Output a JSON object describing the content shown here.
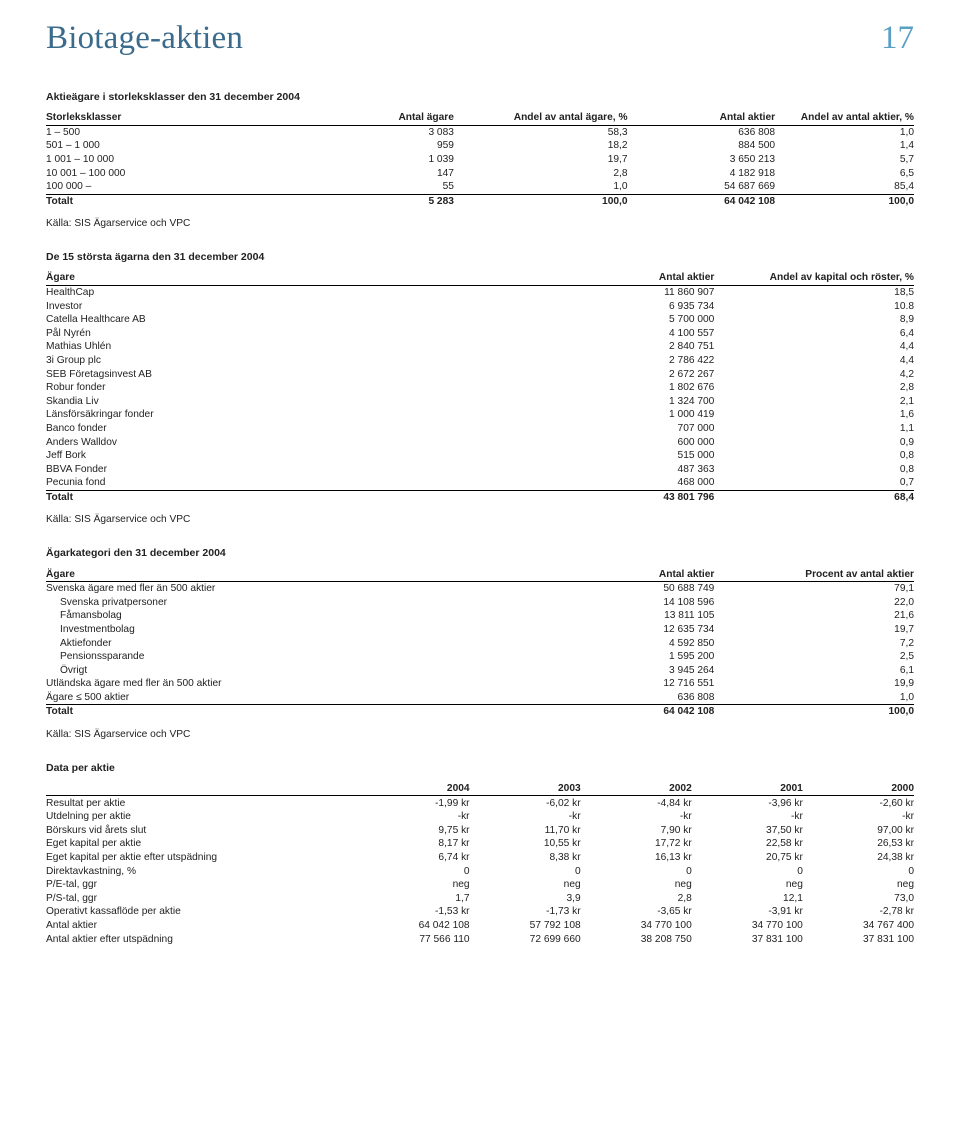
{
  "header": {
    "title": "Biotage-aktien",
    "page_num": "17"
  },
  "source_label": "Källa: SIS Ägarservice och VPC",
  "table1": {
    "title": "Aktieägare i storleksklasser den 31 december 2004",
    "headers": [
      "Storleksklasser",
      "Antal ägare",
      "Andel av antal ägare, %",
      "Antal aktier",
      "Andel av antal aktier, %"
    ],
    "rows": [
      [
        "1 – 500",
        "3 083",
        "58,3",
        "636 808",
        "1,0"
      ],
      [
        "501 – 1 000",
        "959",
        "18,2",
        "884 500",
        "1,4"
      ],
      [
        "1 001 – 10 000",
        "1 039",
        "19,7",
        "3 650 213",
        "5,7"
      ],
      [
        "10 001 – 100 000",
        "147",
        "2,8",
        "4 182 918",
        "6,5"
      ],
      [
        "100 000 –",
        "55",
        "1,0",
        "54 687 669",
        "85,4"
      ]
    ],
    "total": [
      "Totalt",
      "5 283",
      "100,0",
      "64 042 108",
      "100,0"
    ]
  },
  "table2": {
    "title": "De 15 största ägarna den 31 december 2004",
    "headers": [
      "Ägare",
      "Antal aktier",
      "Andel av kapital och röster, %"
    ],
    "rows": [
      [
        "HealthCap",
        "11 860 907",
        "18,5"
      ],
      [
        "Investor",
        "6 935 734",
        "10.8"
      ],
      [
        "Catella Healthcare AB",
        "5 700 000",
        "8,9"
      ],
      [
        "Pål Nyrén",
        "4 100 557",
        "6,4"
      ],
      [
        "Mathias Uhlén",
        "2 840 751",
        "4,4"
      ],
      [
        "3i Group plc",
        "2 786 422",
        "4,4"
      ],
      [
        "SEB Företagsinvest AB",
        "2 672 267",
        "4,2"
      ],
      [
        "Robur fonder",
        "1 802 676",
        "2,8"
      ],
      [
        "Skandia Liv",
        "1 324 700",
        "2,1"
      ],
      [
        "Länsförsäkringar fonder",
        "1 000 419",
        "1,6"
      ],
      [
        "Banco fonder",
        "707 000",
        "1,1"
      ],
      [
        "Anders Walldov",
        "600 000",
        "0,9"
      ],
      [
        "Jeff Bork",
        "515 000",
        "0,8"
      ],
      [
        "BBVA Fonder",
        "487 363",
        "0,8"
      ],
      [
        "Pecunia fond",
        "468 000",
        "0,7"
      ]
    ],
    "total": [
      "Totalt",
      "43 801 796",
      "68,4"
    ]
  },
  "table3": {
    "title": "Ägarkategori den 31 december 2004",
    "headers": [
      "Ägare",
      "Antal aktier",
      "Procent av antal aktier"
    ],
    "rows": [
      {
        "cells": [
          "Svenska ägare med fler än 500 aktier",
          "50 688 749",
          "79,1"
        ],
        "indent": 0
      },
      {
        "cells": [
          "Svenska privatpersoner",
          "14 108 596",
          "22,0"
        ],
        "indent": 1
      },
      {
        "cells": [
          "Fåmansbolag",
          "13 811 105",
          "21,6"
        ],
        "indent": 1
      },
      {
        "cells": [
          "Investmentbolag",
          "12 635 734",
          "19,7"
        ],
        "indent": 1
      },
      {
        "cells": [
          "Aktiefonder",
          "4 592 850",
          "7,2"
        ],
        "indent": 1
      },
      {
        "cells": [
          "Pensionssparande",
          "1 595 200",
          "2,5"
        ],
        "indent": 1
      },
      {
        "cells": [
          "Övrigt",
          "3 945 264",
          "6,1"
        ],
        "indent": 1
      },
      {
        "cells": [
          "Utländska ägare med fler än 500 aktier",
          "12 716 551",
          "19,9"
        ],
        "indent": 0
      },
      {
        "cells": [
          "Ägare ≤ 500 aktier",
          "636 808",
          "1,0"
        ],
        "indent": 0
      }
    ],
    "total": [
      "Totalt",
      "64 042 108",
      "100,0"
    ]
  },
  "table4": {
    "title": "Data per aktie",
    "headers": [
      "",
      "2004",
      "2003",
      "2002",
      "2001",
      "2000"
    ],
    "rows": [
      [
        "Resultat per aktie",
        "-1,99 kr",
        "-6,02 kr",
        "-4,84 kr",
        "-3,96 kr",
        "-2,60 kr"
      ],
      [
        "Utdelning per aktie",
        "-kr",
        "-kr",
        "-kr",
        "-kr",
        "-kr"
      ],
      [
        "Börskurs vid årets slut",
        "9,75 kr",
        "11,70 kr",
        "7,90 kr",
        "37,50 kr",
        "97,00 kr"
      ],
      [
        "Eget kapital per aktie",
        "8,17 kr",
        "10,55 kr",
        "17,72 kr",
        "22,58 kr",
        "26,53 kr"
      ],
      [
        "Eget kapital per aktie efter utspädning",
        "6,74 kr",
        "8,38 kr",
        "16,13 kr",
        "20,75 kr",
        "24,38 kr"
      ],
      [
        "Direktavkastning, %",
        "0",
        "0",
        "0",
        "0",
        "0"
      ],
      [
        "P/E-tal, ggr",
        "neg",
        "neg",
        "neg",
        "neg",
        "neg"
      ],
      [
        "P/S-tal, ggr",
        "1,7",
        "3,9",
        "2,8",
        "12,1",
        "73,0"
      ],
      [
        "Operativt kassaflöde per aktie",
        "-1,53 kr",
        "-1,73 kr",
        "-3,65 kr",
        "-3,91 kr",
        "-2,78 kr"
      ],
      [
        "Antal aktier",
        "64 042 108",
        "57 792 108",
        "34 770 100",
        "34 770 100",
        "34 767 400"
      ],
      [
        "Antal aktier efter utspädning",
        "77 566 110",
        "72 699 660",
        "38 208 750",
        "37 831 100",
        "37 831 100"
      ]
    ]
  },
  "colors": {
    "title": "#3a6a8c",
    "page_num": "#5aa0c4",
    "rule": "#000000",
    "text": "#222222",
    "bg": "#ffffff"
  },
  "column_widths": {
    "t1": [
      "32%",
      "15%",
      "20%",
      "17%",
      "16%"
    ],
    "t2": [
      "55%",
      "22%",
      "23%"
    ],
    "t3": [
      "55%",
      "22%",
      "23%"
    ],
    "t4": [
      "36%",
      "12.8%",
      "12.8%",
      "12.8%",
      "12.8%",
      "12.8%"
    ]
  }
}
